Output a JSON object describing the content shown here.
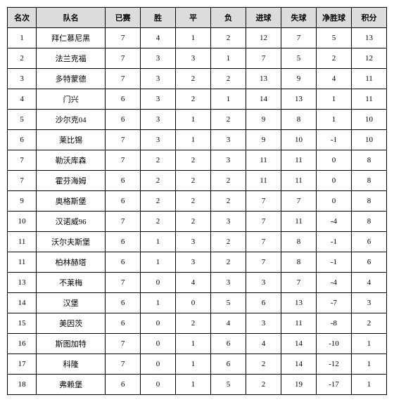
{
  "table": {
    "headers": [
      "名次",
      "队名",
      "已赛",
      "胜",
      "平",
      "负",
      "进球",
      "失球",
      "净胜球",
      "积分"
    ],
    "rows": [
      [
        "1",
        "拜仁慕尼黑",
        "7",
        "4",
        "1",
        "2",
        "12",
        "7",
        "5",
        "13"
      ],
      [
        "2",
        "法兰克福",
        "7",
        "3",
        "3",
        "1",
        "7",
        "5",
        "2",
        "12"
      ],
      [
        "3",
        "多特蒙德",
        "7",
        "3",
        "2",
        "2",
        "13",
        "9",
        "4",
        "11"
      ],
      [
        "4",
        "门兴",
        "6",
        "3",
        "2",
        "1",
        "14",
        "13",
        "1",
        "11"
      ],
      [
        "5",
        "沙尔克04",
        "6",
        "3",
        "1",
        "2",
        "9",
        "8",
        "1",
        "10"
      ],
      [
        "6",
        "莱比锡",
        "7",
        "3",
        "1",
        "3",
        "9",
        "10",
        "-1",
        "10"
      ],
      [
        "7",
        "勒沃库森",
        "7",
        "2",
        "2",
        "3",
        "11",
        "11",
        "0",
        "8"
      ],
      [
        "7",
        "霍芬海姆",
        "6",
        "2",
        "2",
        "2",
        "11",
        "11",
        "0",
        "8"
      ],
      [
        "9",
        "奥格斯堡",
        "6",
        "2",
        "2",
        "2",
        "7",
        "7",
        "0",
        "8"
      ],
      [
        "10",
        "汉诺威96",
        "7",
        "2",
        "2",
        "3",
        "7",
        "11",
        "-4",
        "8"
      ],
      [
        "11",
        "沃尔夫斯堡",
        "6",
        "1",
        "3",
        "2",
        "7",
        "8",
        "-1",
        "6"
      ],
      [
        "11",
        "柏林赫塔",
        "6",
        "1",
        "3",
        "2",
        "7",
        "8",
        "-1",
        "6"
      ],
      [
        "13",
        "不莱梅",
        "7",
        "0",
        "4",
        "3",
        "3",
        "7",
        "-4",
        "4"
      ],
      [
        "14",
        "汉堡",
        "6",
        "1",
        "0",
        "5",
        "6",
        "13",
        "-7",
        "3"
      ],
      [
        "15",
        "美因茨",
        "6",
        "0",
        "2",
        "4",
        "3",
        "11",
        "-8",
        "2"
      ],
      [
        "16",
        "斯图加特",
        "7",
        "0",
        "1",
        "6",
        "4",
        "14",
        "-10",
        "1"
      ],
      [
        "17",
        "科隆",
        "7",
        "0",
        "1",
        "6",
        "2",
        "14",
        "-12",
        "1"
      ],
      [
        "18",
        "弗赖堡",
        "6",
        "0",
        "1",
        "5",
        "2",
        "19",
        "-17",
        "1"
      ]
    ]
  }
}
